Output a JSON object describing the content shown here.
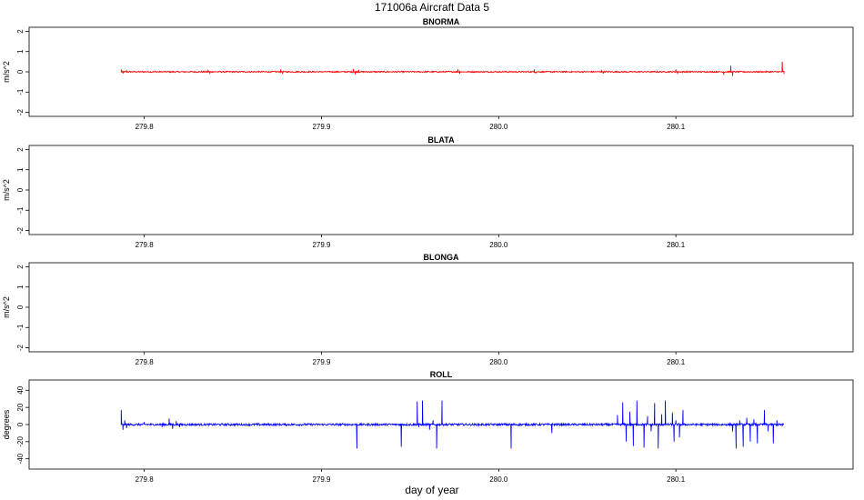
{
  "chart_data": {
    "title": "171006a   Aircraft Data 5",
    "xlabel": "day of year",
    "x_ticks": [
      "279.8",
      "279.9",
      "280.0",
      "280.1"
    ],
    "x_tick_values": [
      279.8,
      279.9,
      280.0,
      280.1
    ],
    "xlim": [
      279.735,
      280.2
    ],
    "data_xrange": [
      279.787,
      280.161
    ],
    "panels": [
      {
        "type": "line",
        "title": "BNORMA",
        "ylabel": "m/s^2",
        "ylim": [
          -2.2,
          2.2
        ],
        "y_ticks": [
          "2",
          "1",
          "0",
          "-1",
          "-2"
        ],
        "y_tick_values": [
          2,
          1,
          0,
          -1,
          -2
        ],
        "color": "#ff0000",
        "noise": 0.03,
        "points": [
          [
            279.787,
            0.12
          ],
          [
            279.788,
            -0.08
          ],
          [
            279.79,
            0.05
          ],
          [
            279.836,
            0.1
          ],
          [
            279.837,
            -0.09
          ],
          [
            279.877,
            0.12
          ],
          [
            279.878,
            -0.1
          ],
          [
            279.918,
            0.15
          ],
          [
            279.919,
            -0.12
          ],
          [
            279.921,
            0.1
          ],
          [
            279.977,
            0.13
          ],
          [
            279.978,
            -0.1
          ],
          [
            280.02,
            0.12
          ],
          [
            280.021,
            -0.08
          ],
          [
            280.058,
            0.1
          ],
          [
            280.059,
            -0.08
          ],
          [
            280.1,
            0.12
          ],
          [
            280.101,
            -0.1
          ],
          [
            280.127,
            -0.15
          ],
          [
            280.131,
            0.3
          ],
          [
            280.132,
            -0.2
          ],
          [
            280.16,
            0.5
          ],
          [
            280.161,
            -0.1
          ]
        ]
      },
      {
        "type": "line",
        "title": "BLATA",
        "ylabel": "m/s^2",
        "ylim": [
          -2.2,
          2.2
        ],
        "y_ticks": [
          "2",
          "1",
          "0",
          "-1",
          "-2"
        ],
        "y_tick_values": [
          2,
          1,
          0,
          -1,
          -2
        ],
        "color": "#ff0000",
        "noise": 0,
        "points": []
      },
      {
        "type": "line",
        "title": "BLONGA",
        "ylabel": "m/s^2",
        "ylim": [
          -2.2,
          2.2
        ],
        "y_ticks": [
          "2",
          "1",
          "0",
          "-1",
          "-2"
        ],
        "y_tick_values": [
          2,
          1,
          0,
          -1,
          -2
        ],
        "color": "#ff0000",
        "noise": 0,
        "points": []
      },
      {
        "type": "line",
        "title": "ROLL",
        "ylabel": "degrees",
        "ylim": [
          -52,
          52
        ],
        "y_ticks": [
          "40",
          "20",
          "0",
          "-20",
          "-40"
        ],
        "y_tick_values": [
          40,
          20,
          0,
          -20,
          -40
        ],
        "color": "#0000ff",
        "noise": 1.2,
        "points": [
          [
            279.787,
            17
          ],
          [
            279.788,
            -6
          ],
          [
            279.789,
            5
          ],
          [
            279.79,
            -4
          ],
          [
            279.8,
            3
          ],
          [
            279.81,
            -3
          ],
          [
            279.814,
            7
          ],
          [
            279.816,
            -5
          ],
          [
            279.818,
            4
          ],
          [
            279.82,
            -3
          ],
          [
            279.92,
            -28
          ],
          [
            279.922,
            0
          ],
          [
            279.945,
            -26
          ],
          [
            279.946,
            0
          ],
          [
            279.954,
            27
          ],
          [
            279.955,
            -3
          ],
          [
            279.957,
            28
          ],
          [
            279.958,
            0
          ],
          [
            279.961,
            -6
          ],
          [
            279.963,
            5
          ],
          [
            279.965,
            -28
          ],
          [
            279.966,
            0
          ],
          [
            279.968,
            28
          ],
          [
            279.969,
            0
          ],
          [
            280.007,
            -28
          ],
          [
            280.008,
            0
          ],
          [
            280.03,
            -10
          ],
          [
            280.031,
            0
          ],
          [
            280.067,
            11
          ],
          [
            280.068,
            0
          ],
          [
            280.07,
            26
          ],
          [
            280.072,
            -20
          ],
          [
            280.074,
            15
          ],
          [
            280.076,
            -25
          ],
          [
            280.078,
            28
          ],
          [
            280.08,
            0
          ],
          [
            280.082,
            -27
          ],
          [
            280.084,
            10
          ],
          [
            280.086,
            -8
          ],
          [
            280.088,
            25
          ],
          [
            280.09,
            -28
          ],
          [
            280.092,
            12
          ],
          [
            280.094,
            28
          ],
          [
            280.096,
            0
          ],
          [
            280.098,
            14
          ],
          [
            280.099,
            -20
          ],
          [
            280.1,
            5
          ],
          [
            280.102,
            -15
          ],
          [
            280.104,
            17
          ],
          [
            280.106,
            0
          ],
          [
            280.132,
            -8
          ],
          [
            280.134,
            -28
          ],
          [
            280.136,
            5
          ],
          [
            280.138,
            -26
          ],
          [
            280.14,
            8
          ],
          [
            280.142,
            -20
          ],
          [
            280.144,
            6
          ],
          [
            280.146,
            -22
          ],
          [
            280.15,
            17
          ],
          [
            280.152,
            -8
          ],
          [
            280.155,
            -22
          ],
          [
            280.157,
            5
          ],
          [
            280.16,
            -2
          ]
        ]
      }
    ]
  }
}
